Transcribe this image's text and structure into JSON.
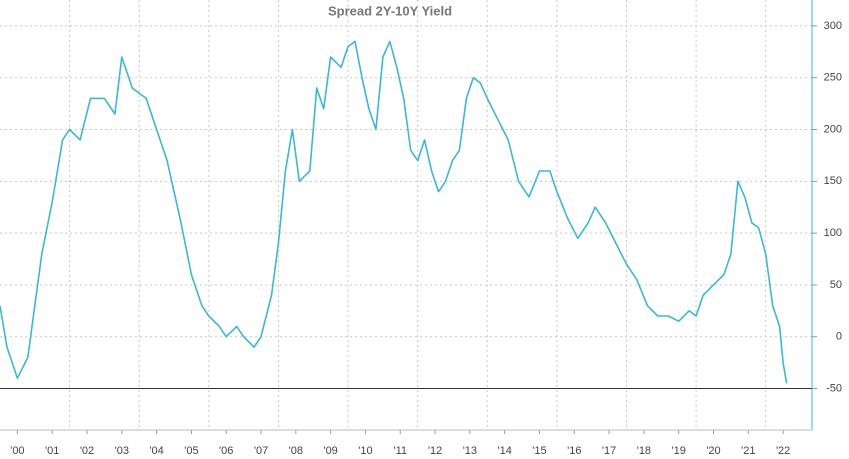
{
  "chart_data": {
    "type": "line",
    "title": "Spread 2Y-10Y Yield",
    "series": [
      {
        "color": "#3ab8d8",
        "x": [
          2000.0,
          2000.2,
          2000.5,
          2000.8,
          2001.0,
          2001.2,
          2001.5,
          2001.8,
          2002.0,
          2002.3,
          2002.6,
          2003.0,
          2003.3,
          2003.5,
          2003.8,
          2004.2,
          2004.5,
          2004.8,
          2005.2,
          2005.5,
          2005.8,
          2006.0,
          2006.3,
          2006.5,
          2006.8,
          2007.0,
          2007.3,
          2007.5,
          2007.8,
          2008.0,
          2008.2,
          2008.4,
          2008.6,
          2008.9,
          2009.1,
          2009.3,
          2009.5,
          2009.8,
          2010.0,
          2010.2,
          2010.4,
          2010.6,
          2010.8,
          2011.0,
          2011.2,
          2011.4,
          2011.6,
          2011.8,
          2012.0,
          2012.2,
          2012.4,
          2012.6,
          2012.8,
          2013.0,
          2013.2,
          2013.4,
          2013.6,
          2013.8,
          2014.0,
          2014.3,
          2014.6,
          2014.9,
          2015.2,
          2015.5,
          2015.8,
          2016.0,
          2016.3,
          2016.6,
          2016.9,
          2017.1,
          2017.4,
          2017.7,
          2018.0,
          2018.3,
          2018.6,
          2018.9,
          2019.2,
          2019.5,
          2019.8,
          2020.0,
          2020.2,
          2020.5,
          2020.8,
          2021.0,
          2021.2,
          2021.4,
          2021.6,
          2021.8,
          2022.0,
          2022.2,
          2022.4,
          2022.5,
          2022.6
        ],
        "values": [
          30,
          -10,
          -40,
          -20,
          30,
          80,
          130,
          190,
          200,
          190,
          230,
          230,
          215,
          270,
          240,
          230,
          200,
          170,
          110,
          60,
          30,
          20,
          10,
          0,
          10,
          0,
          -10,
          0,
          40,
          90,
          160,
          200,
          150,
          160,
          240,
          220,
          270,
          260,
          280,
          285,
          250,
          220,
          200,
          270,
          285,
          260,
          230,
          180,
          170,
          190,
          160,
          140,
          150,
          170,
          180,
          230,
          250,
          245,
          230,
          210,
          190,
          150,
          135,
          160,
          160,
          140,
          115,
          95,
          110,
          125,
          110,
          90,
          70,
          55,
          30,
          20,
          20,
          15,
          25,
          20,
          40,
          50,
          60,
          80,
          150,
          135,
          110,
          105,
          80,
          30,
          10,
          -25,
          -45
        ]
      }
    ],
    "xlim": [
      2000,
      2023.33
    ],
    "xticks": [
      {
        "value": 2000.5,
        "label": "'00"
      },
      {
        "value": 2001.5,
        "label": "'01"
      },
      {
        "value": 2002.5,
        "label": "'02"
      },
      {
        "value": 2003.5,
        "label": "'03"
      },
      {
        "value": 2004.5,
        "label": "'04"
      },
      {
        "value": 2005.5,
        "label": "'05"
      },
      {
        "value": 2006.5,
        "label": "'06"
      },
      {
        "value": 2007.5,
        "label": "'07"
      },
      {
        "value": 2008.5,
        "label": "'08"
      },
      {
        "value": 2009.5,
        "label": "'09"
      },
      {
        "value": 2010.5,
        "label": "'10"
      },
      {
        "value": 2011.5,
        "label": "'11"
      },
      {
        "value": 2012.5,
        "label": "'12"
      },
      {
        "value": 2013.5,
        "label": "'13"
      },
      {
        "value": 2014.5,
        "label": "'14"
      },
      {
        "value": 2015.5,
        "label": "'15"
      },
      {
        "value": 2016.5,
        "label": "'16"
      },
      {
        "value": 2017.5,
        "label": "'17"
      },
      {
        "value": 2018.5,
        "label": "'18"
      },
      {
        "value": 2019.5,
        "label": "'19"
      },
      {
        "value": 2020.5,
        "label": "'20"
      },
      {
        "value": 2021.5,
        "label": "'21"
      },
      {
        "value": 2022.5,
        "label": "'22"
      }
    ],
    "xgrid": [
      2002,
      2004,
      2006,
      2008,
      2010,
      2012,
      2014,
      2016,
      2018,
      2020,
      2022
    ],
    "ylim": [
      -90,
      325
    ],
    "yticks": [
      -50,
      0,
      50,
      100,
      150,
      200,
      250,
      300
    ],
    "hline": -50,
    "grid": true
  }
}
